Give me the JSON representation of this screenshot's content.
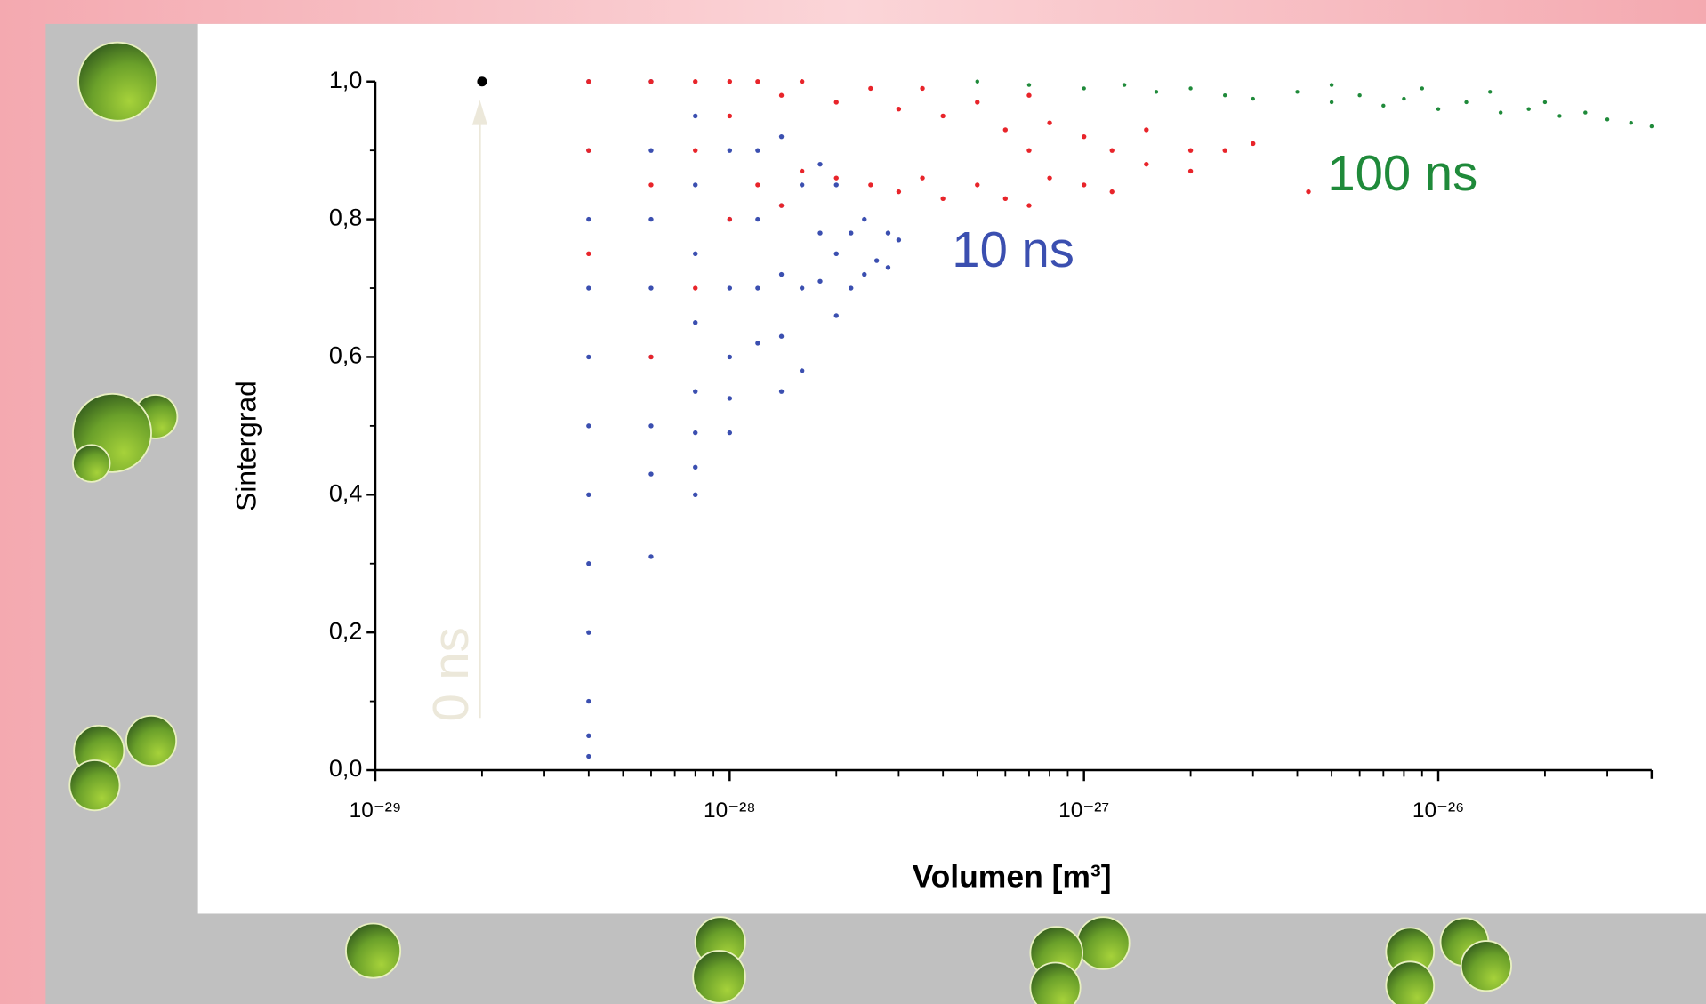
{
  "chart_data": {
    "type": "scatter",
    "y_label": "Sintergrad",
    "x_label": "Volumen [m³]",
    "xscale": "log",
    "minor_ticks": true,
    "xlim": [
      1e-29,
      4e-26
    ],
    "ylim": [
      0,
      1
    ],
    "xticks": [
      {
        "value": 1e-29,
        "label": "10⁻²⁹"
      },
      {
        "value": 1e-28,
        "label": "10⁻²⁸"
      },
      {
        "value": 1e-27,
        "label": "10⁻²⁷"
      },
      {
        "value": 1e-26,
        "label": "10⁻²⁶"
      }
    ],
    "yticks": [
      {
        "value": 0,
        "label": "0,0"
      },
      {
        "value": 0.2,
        "label": "0,2"
      },
      {
        "value": 0.4,
        "label": "0,4"
      },
      {
        "value": 0.6,
        "label": "0,6"
      },
      {
        "value": 0.8,
        "label": "0,8"
      },
      {
        "value": 1,
        "label": "1,0"
      }
    ],
    "series": [
      {
        "name": "0 ns",
        "color": "#000000",
        "x": [
          2e-29
        ],
        "y": [
          1.0
        ]
      },
      {
        "name": "10 ns",
        "color": "#3b4fb0",
        "x": [
          4e-29,
          4e-29,
          4e-29,
          4e-29,
          4e-29,
          4e-29,
          4e-29,
          4e-29,
          4e-29,
          4e-29,
          4e-29,
          4e-29,
          6e-29,
          6e-29,
          6e-29,
          6e-29,
          6e-29,
          6e-29,
          6e-29,
          6e-29,
          8e-29,
          8e-29,
          8e-29,
          8e-29,
          8e-29,
          8e-29,
          8e-29,
          8e-29,
          1e-28,
          1e-28,
          1e-28,
          1e-28,
          1e-28,
          1e-28,
          1.2e-28,
          1.2e-28,
          1.2e-28,
          1.2e-28,
          1.4e-28,
          1.4e-28,
          1.4e-28,
          1.4e-28,
          1.4e-28,
          1.6e-28,
          1.6e-28,
          1.6e-28,
          1.8e-28,
          1.8e-28,
          1.8e-28,
          2e-28,
          2e-28,
          2e-28,
          2.2e-28,
          2.2e-28,
          2.4e-28,
          2.4e-28,
          2.6e-28,
          2.8e-28,
          2.8e-28,
          3e-28
        ],
        "y": [
          0.02,
          0.05,
          0.1,
          0.2,
          0.3,
          0.4,
          0.5,
          0.6,
          0.7,
          0.8,
          0.9,
          1.0,
          0.31,
          0.43,
          0.5,
          0.6,
          0.7,
          0.8,
          0.9,
          1.0,
          0.4,
          0.44,
          0.49,
          0.55,
          0.65,
          0.75,
          0.85,
          0.95,
          0.49,
          0.54,
          0.6,
          0.7,
          0.8,
          0.9,
          0.62,
          0.7,
          0.8,
          0.9,
          0.55,
          0.63,
          0.72,
          0.82,
          0.92,
          0.58,
          0.7,
          0.85,
          0.71,
          0.78,
          0.88,
          0.66,
          0.75,
          0.85,
          0.7,
          0.78,
          0.72,
          0.8,
          0.74,
          0.73,
          0.78,
          0.77
        ]
      },
      {
        "name": "100 ns",
        "color": "#e8242a",
        "x": [
          4e-29,
          4e-29,
          4e-29,
          6e-29,
          6e-29,
          6e-29,
          8e-29,
          8e-29,
          8e-29,
          1e-28,
          1e-28,
          1e-28,
          1.2e-28,
          1.2e-28,
          1.4e-28,
          1.4e-28,
          1.6e-28,
          1.6e-28,
          2e-28,
          2e-28,
          2.5e-28,
          2.5e-28,
          3e-28,
          3e-28,
          3.5e-28,
          3.5e-28,
          4e-28,
          4e-28,
          5e-28,
          5e-28,
          6e-28,
          6e-28,
          7e-28,
          7e-28,
          7e-28,
          8e-28,
          8e-28,
          1e-27,
          1e-27,
          1.2e-27,
          1.2e-27,
          1.5e-27,
          1.5e-27,
          2e-27,
          2e-27,
          2.5e-27,
          3e-27,
          4.3e-27
        ],
        "y": [
          0.75,
          0.9,
          1.0,
          0.6,
          0.85,
          1.0,
          0.7,
          0.9,
          1.0,
          0.8,
          0.95,
          1.0,
          0.85,
          1.0,
          0.82,
          0.98,
          0.87,
          1.0,
          0.86,
          0.97,
          0.85,
          0.99,
          0.84,
          0.96,
          0.86,
          0.99,
          0.83,
          0.95,
          0.85,
          0.97,
          0.83,
          0.93,
          0.82,
          0.9,
          0.98,
          0.86,
          0.94,
          0.85,
          0.92,
          0.84,
          0.9,
          0.88,
          0.93,
          0.87,
          0.9,
          0.9,
          0.91,
          0.84
        ]
      },
      {
        "name": "100 ns",
        "color": "#1f8a3a",
        "x": [
          5e-28,
          7e-28,
          1e-27,
          1.3e-27,
          1.6e-27,
          2e-27,
          2.5e-27,
          3e-27,
          4e-27,
          5e-27,
          6e-27,
          7e-27,
          8e-27,
          1e-26,
          1.2e-26,
          1.5e-26,
          1.8e-26,
          2.2e-26,
          2.6e-26,
          3e-26,
          3.5e-26,
          4e-26,
          9e-27,
          1.4e-26,
          2e-26,
          5e-27
        ],
        "y": [
          1.0,
          0.995,
          0.99,
          0.995,
          0.985,
          0.99,
          0.98,
          0.975,
          0.985,
          0.97,
          0.98,
          0.965,
          0.975,
          0.96,
          0.97,
          0.955,
          0.96,
          0.95,
          0.955,
          0.945,
          0.94,
          0.935,
          0.99,
          0.985,
          0.97,
          0.995
        ]
      }
    ]
  }
}
